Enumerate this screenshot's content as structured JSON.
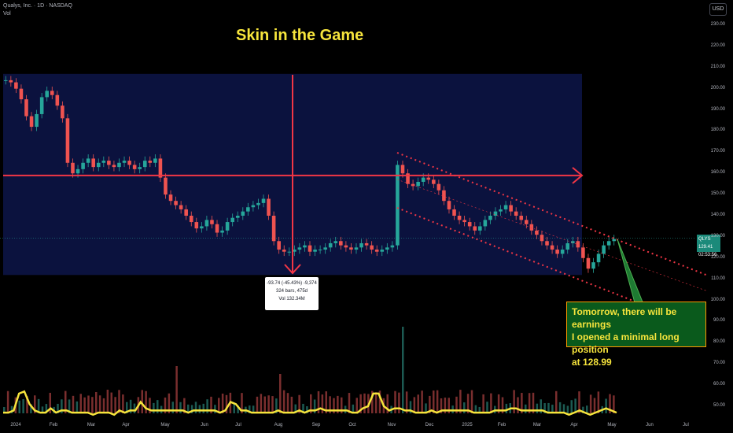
{
  "header": {
    "symbol": "Qualys, Inc. · 1D · NASDAQ",
    "vol_label": "Vol",
    "currency_button": "USD"
  },
  "annotation_title": "Skin in the Game",
  "measure_box": {
    "line1": "-93.74 (-45.43%) -9,374",
    "line2": "324 bars, 475d",
    "line3": "Vol 132.34M"
  },
  "note_box": {
    "line1": "Tomorrow, there will be earnings",
    "line2": "I opened a minimal long position",
    "line3": "at 128.99"
  },
  "price_badge": {
    "symbol": "QLYS",
    "price": "129.41",
    "countdown": "02:53:56"
  },
  "colors": {
    "background": "#000000",
    "up": "#26a69a",
    "down": "#ef5350",
    "annotation_red": "#f23645",
    "highlight_box": "#0c1445",
    "volume_ma": "#f6e43c",
    "note_bg": "#0a5a1c",
    "title_color": "#f6e43c"
  },
  "chart_data": {
    "type": "line",
    "title": "",
    "xlabel": "",
    "ylabel": "",
    "ylim": [
      45,
      235
    ],
    "y_axis_ticks": [
      "230.00",
      "220.00",
      "210.00",
      "200.00",
      "190.00",
      "180.00",
      "170.00",
      "160.00",
      "150.00",
      "140.00",
      "130.00",
      "120.00",
      "110.00",
      "100.00",
      "90.00",
      "80.00",
      "70.00",
      "60.00",
      "50.00"
    ],
    "x_axis_ticks": [
      "2024",
      "Feb",
      "Mar",
      "Apr",
      "May",
      "Jun",
      "Jul",
      "Aug",
      "Sep",
      "Oct",
      "Nov",
      "Dec",
      "2025",
      "Feb",
      "Mar",
      "Apr",
      "May",
      "Jun",
      "Jul"
    ],
    "series": [
      {
        "values": [
          204,
          203,
          200,
          195,
          187,
          182,
          188,
          196,
          199,
          197,
          192,
          186,
          165,
          160,
          162,
          165,
          167,
          163,
          165,
          166,
          164,
          163,
          165,
          166,
          164,
          162,
          163,
          166,
          165,
          167,
          158,
          150,
          147,
          145,
          143,
          140,
          137,
          134,
          135,
          138,
          136,
          132,
          133,
          137,
          139,
          140,
          142,
          144,
          145,
          146,
          148,
          140,
          128,
          124,
          123,
          123,
          124,
          125,
          126,
          123,
          124,
          124,
          125,
          127,
          128,
          126,
          125,
          124,
          125,
          127,
          126,
          124,
          123,
          124,
          125,
          126,
          164,
          160,
          155,
          154,
          156,
          158,
          157,
          155,
          152,
          147,
          143,
          140,
          138,
          137,
          135,
          133,
          135,
          138,
          140,
          142,
          143,
          145,
          142,
          140,
          138,
          136,
          133,
          131,
          128,
          126,
          124,
          122,
          124,
          127,
          128,
          125,
          120,
          115,
          118,
          122,
          126,
          128,
          129
        ]
      }
    ],
    "volume_ma": [
      47,
      47,
      48,
      56,
      57,
      51,
      48,
      47,
      47,
      49,
      47,
      48,
      48,
      47,
      47,
      47,
      47,
      46,
      47,
      47,
      47,
      46,
      48,
      47,
      48,
      48,
      52,
      49,
      48,
      48,
      48,
      48,
      48,
      48,
      48,
      47,
      48,
      48,
      48,
      48,
      48,
      47,
      48,
      52,
      51,
      48,
      48,
      47,
      47,
      47,
      47,
      47,
      48,
      47,
      47,
      47,
      48,
      47,
      48,
      48,
      49,
      48,
      48,
      48,
      48,
      48,
      47,
      47,
      49,
      50,
      56,
      56,
      50,
      48,
      49,
      49,
      48,
      48,
      47,
      47,
      47,
      48,
      47,
      48,
      48,
      48,
      48,
      48,
      48,
      47,
      47,
      47,
      47,
      48,
      48,
      48,
      49,
      49,
      48,
      48,
      48,
      48,
      48,
      47,
      47,
      47,
      47,
      46,
      47,
      48,
      47,
      46,
      47,
      48,
      49,
      48,
      47
    ],
    "volume_max": 94
  }
}
